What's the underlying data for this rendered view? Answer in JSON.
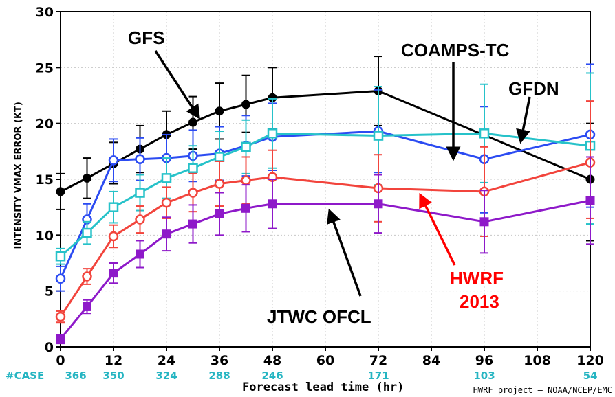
{
  "chart_data": {
    "type": "line",
    "xlabel": "Forecast lead time (hr)",
    "ylabel": "INTENSITY VMAX ERROR (KT)",
    "xlim": [
      0,
      120
    ],
    "ylim": [
      0,
      30
    ],
    "x_ticks": [
      0,
      12,
      24,
      36,
      48,
      60,
      72,
      84,
      96,
      108,
      120
    ],
    "y_ticks": [
      0,
      5,
      10,
      15,
      20,
      25,
      30
    ],
    "grid": true,
    "series": [
      {
        "name": "GFS",
        "color": "#000000",
        "marker": "filled-circle",
        "x": [
          0,
          6,
          12,
          18,
          24,
          30,
          36,
          42,
          48,
          72,
          120
        ],
        "values": [
          13.9,
          15.1,
          16.4,
          17.7,
          19.0,
          20.1,
          21.1,
          21.7,
          22.3,
          22.9,
          15.0
        ],
        "err_low": [
          12.3,
          13.3,
          14.6,
          15.6,
          16.8,
          17.7,
          18.6,
          19.2,
          19.5,
          19.8,
          9.5
        ],
        "err_high": [
          15.5,
          16.9,
          18.3,
          19.8,
          21.1,
          22.4,
          23.6,
          24.3,
          25.0,
          26.0,
          20.0
        ]
      },
      {
        "name": "COAMPS-TC",
        "color": "#2b4bf2",
        "marker": "open-circle",
        "x": [
          0,
          6,
          12,
          18,
          24,
          30,
          36,
          42,
          48,
          72,
          96,
          120
        ],
        "values": [
          6.1,
          11.4,
          16.7,
          16.8,
          16.9,
          17.1,
          17.3,
          18.0,
          18.8,
          19.3,
          16.8,
          19.0
        ],
        "err_low": [
          5.0,
          10.0,
          14.8,
          14.9,
          14.8,
          14.8,
          14.9,
          15.3,
          15.8,
          15.6,
          12.0,
          12.5
        ],
        "err_high": [
          7.2,
          12.8,
          18.6,
          18.7,
          19.0,
          19.4,
          19.7,
          20.7,
          21.8,
          23.0,
          21.5,
          25.3
        ]
      },
      {
        "name": "GFDN",
        "color": "#26c2c9",
        "marker": "open-square",
        "x": [
          0,
          6,
          12,
          18,
          24,
          30,
          36,
          42,
          48,
          72,
          96,
          120
        ],
        "values": [
          8.1,
          10.2,
          12.5,
          13.8,
          15.1,
          16.0,
          17.0,
          17.9,
          19.1,
          18.9,
          19.1,
          18.0
        ],
        "err_low": [
          7.4,
          9.2,
          11.1,
          12.2,
          13.3,
          14.0,
          14.7,
          15.5,
          16.0,
          14.5,
          14.7,
          11.0
        ],
        "err_high": [
          8.8,
          11.2,
          13.9,
          15.4,
          16.9,
          18.0,
          19.3,
          20.3,
          22.2,
          23.3,
          23.5,
          24.5
        ]
      },
      {
        "name": "HWRF 2013",
        "color": "#f2443c",
        "marker": "open-circle",
        "x": [
          0,
          6,
          12,
          18,
          24,
          30,
          36,
          42,
          48,
          72,
          96,
          120
        ],
        "values": [
          2.7,
          6.3,
          9.9,
          11.4,
          12.9,
          13.8,
          14.6,
          14.9,
          15.2,
          14.2,
          13.9,
          16.5
        ],
        "err_low": [
          2.2,
          5.6,
          8.9,
          10.2,
          11.5,
          12.1,
          12.6,
          12.8,
          12.8,
          11.2,
          9.9,
          11.5
        ],
        "err_high": [
          3.2,
          7.0,
          10.9,
          12.6,
          14.3,
          15.5,
          16.6,
          17.0,
          17.6,
          17.2,
          17.9,
          22.0
        ]
      },
      {
        "name": "JTWC OFCL",
        "color": "#8e19c9",
        "marker": "filled-square",
        "x": [
          0,
          6,
          12,
          18,
          24,
          30,
          36,
          42,
          48,
          72,
          96,
          120
        ],
        "values": [
          0.7,
          3.6,
          6.6,
          8.3,
          10.1,
          11.0,
          11.9,
          12.4,
          12.8,
          12.8,
          11.2,
          13.1
        ],
        "err_low": [
          0.3,
          3.0,
          5.7,
          7.1,
          8.6,
          9.3,
          10.0,
          10.3,
          10.6,
          10.2,
          8.4,
          9.2
        ],
        "err_high": [
          1.1,
          4.2,
          7.5,
          9.5,
          11.6,
          12.7,
          13.8,
          14.5,
          15.0,
          15.4,
          14.0,
          17.0
        ]
      }
    ],
    "case_counts": {
      "label": "#CASE",
      "x": [
        0,
        12,
        24,
        36,
        48,
        72,
        96,
        120
      ],
      "values": [
        "366",
        "350",
        "324",
        "288",
        "246",
        "171",
        "103",
        "54"
      ]
    },
    "annotations": [
      {
        "text": "GFS",
        "color": "#000000"
      },
      {
        "text": "COAMPS-TC",
        "color": "#000000"
      },
      {
        "text": "GFDN",
        "color": "#000000"
      },
      {
        "text": "JTWC OFCL",
        "color": "#000000"
      },
      {
        "text": "HWRF",
        "color": "#ff0000"
      },
      {
        "text": "2013",
        "color": "#ff0000"
      }
    ],
    "credit": "HWRF project — NOAA/NCEP/EMC"
  }
}
